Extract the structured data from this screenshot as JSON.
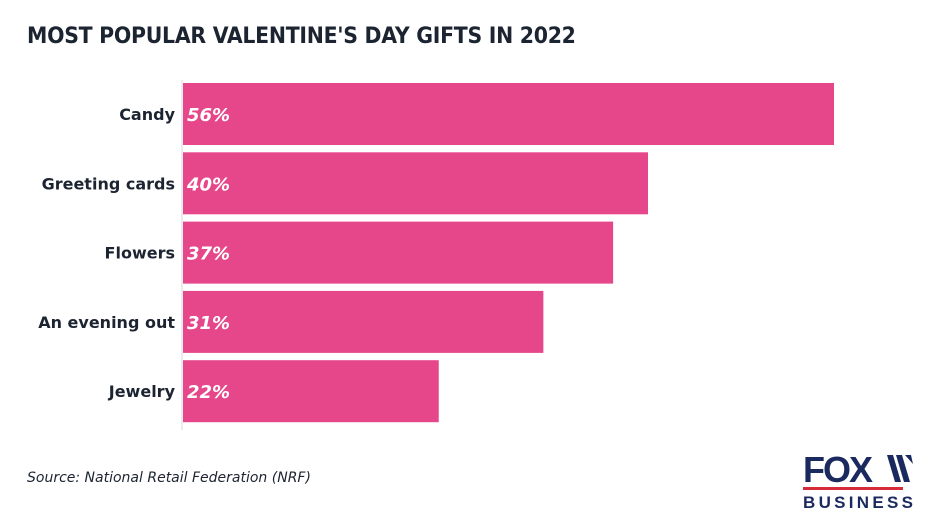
{
  "chart_data": {
    "type": "bar",
    "orientation": "horizontal",
    "title": "MOST POPULAR VALENTINE'S DAY GIFTS IN 2022",
    "categories": [
      "Candy",
      "Greeting cards",
      "Flowers",
      "An evening out",
      "Jewelry"
    ],
    "values": [
      56,
      40,
      37,
      31,
      22
    ],
    "data_labels": [
      "56%",
      "40%",
      "37%",
      "31%",
      "22%"
    ],
    "xlim": [
      0,
      60
    ],
    "unit": "%",
    "grid": false,
    "bar_color": "#e5478a",
    "label_color": "#ffffff"
  },
  "source": "Source: National Retail Federation (NRF)",
  "logo": {
    "text_top": "FOX",
    "text_bottom": "BUSINESS",
    "colors": {
      "navy": "#1b2a5e",
      "red": "#d62c3a"
    }
  }
}
